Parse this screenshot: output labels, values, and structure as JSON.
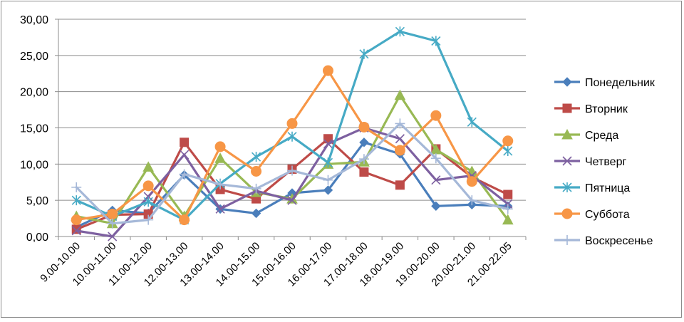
{
  "chart_data": {
    "type": "line",
    "title": "",
    "xlabel": "",
    "ylabel": "",
    "ylim": [
      0,
      30
    ],
    "yticks": [
      "0,00",
      "5,00",
      "10,00",
      "15,00",
      "20,00",
      "25,00",
      "30,00"
    ],
    "grid": "horizontal",
    "legend_position": "right",
    "categories": [
      "9.00-10.00",
      "10.00-11.00",
      "11.00-12.00",
      "12.00-13.00",
      "13.00-14.00",
      "14.00-15.00",
      "15.00-16.00",
      "16.00-17.00",
      "17.00-18.00",
      "18.00-19.00",
      "19.00-20.00",
      "20.00-21.00",
      "21.00-22.05"
    ],
    "series": [
      {
        "name": "Понедельник",
        "color": "#4a7ebb",
        "marker": "diamond",
        "values": [
          1.3,
          3.6,
          3.2,
          8.5,
          3.8,
          3.2,
          6.0,
          6.4,
          13.0,
          11.4,
          4.2,
          4.4,
          4.2
        ]
      },
      {
        "name": "Вторник",
        "color": "#be4b48",
        "marker": "square",
        "values": [
          1.0,
          3.0,
          3.1,
          13.0,
          6.5,
          5.2,
          9.3,
          13.5,
          8.9,
          7.1,
          12.1,
          8.2,
          5.8
        ]
      },
      {
        "name": "Среда",
        "color": "#98b954",
        "marker": "triangle",
        "values": [
          2.8,
          1.8,
          9.6,
          2.8,
          10.8,
          6.1,
          5.2,
          10.0,
          10.3,
          19.5,
          12.0,
          9.0,
          2.3
        ]
      },
      {
        "name": "Четверг",
        "color": "#7d60a0",
        "marker": "x",
        "values": [
          0.8,
          0.0,
          5.5,
          11.3,
          3.8,
          6.3,
          5.0,
          12.8,
          15.0,
          13.5,
          7.8,
          8.4,
          4.5
        ]
      },
      {
        "name": "Пятница",
        "color": "#46aac5",
        "marker": "star",
        "values": [
          5.0,
          2.8,
          4.8,
          2.3,
          7.3,
          11.0,
          13.8,
          10.2,
          25.2,
          28.3,
          27.0,
          15.8,
          11.8
        ]
      },
      {
        "name": "Суббота",
        "color": "#f79646",
        "marker": "circle",
        "values": [
          2.3,
          3.1,
          7.0,
          2.3,
          12.4,
          9.0,
          15.6,
          22.9,
          15.1,
          11.9,
          16.7,
          7.6,
          13.2
        ]
      },
      {
        "name": "Воскресенье",
        "color": "#a5b8d8",
        "marker": "plus",
        "values": [
          6.8,
          1.8,
          2.3,
          8.6,
          7.2,
          6.6,
          9.1,
          7.8,
          10.7,
          15.6,
          10.8,
          5.0,
          3.8
        ]
      }
    ]
  }
}
